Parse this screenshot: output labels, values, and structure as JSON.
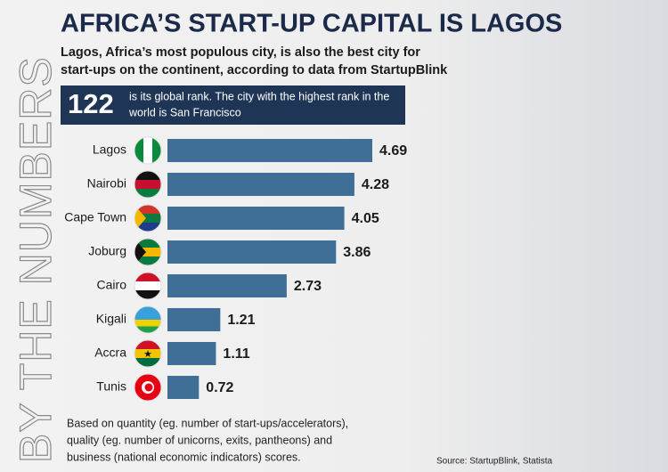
{
  "chart_data": {
    "type": "bar",
    "orientation": "horizontal",
    "side_label": "BY THE NUMBERS",
    "title": "AFRICA’S START-UP CAPITAL IS LAGOS",
    "subtitle": [
      "Lagos, Africa’s most populous city, is also the best city for",
      "start-ups on the continent, according to data from StartupBlink"
    ],
    "highlight": {
      "number": "122",
      "text": [
        "is its global rank. The city with the highest rank in the",
        "world is San Francisco"
      ]
    },
    "categories": [
      "Lagos",
      "Nairobi",
      "Cape Town",
      "Joburg",
      "Cairo",
      "Kigali",
      "Accra",
      "Tunis"
    ],
    "values": [
      4.69,
      4.28,
      4.05,
      3.86,
      2.73,
      1.21,
      1.11,
      0.72
    ],
    "color": "#3f6e97",
    "footnote": [
      "Based on quantity (eg. number of start-ups/accelerators),",
      "quality (eg. number of unicorns, exits, pantheons) and",
      "business (national economic indicators) scores."
    ],
    "source": "Source: StartupBlink, Statista"
  }
}
